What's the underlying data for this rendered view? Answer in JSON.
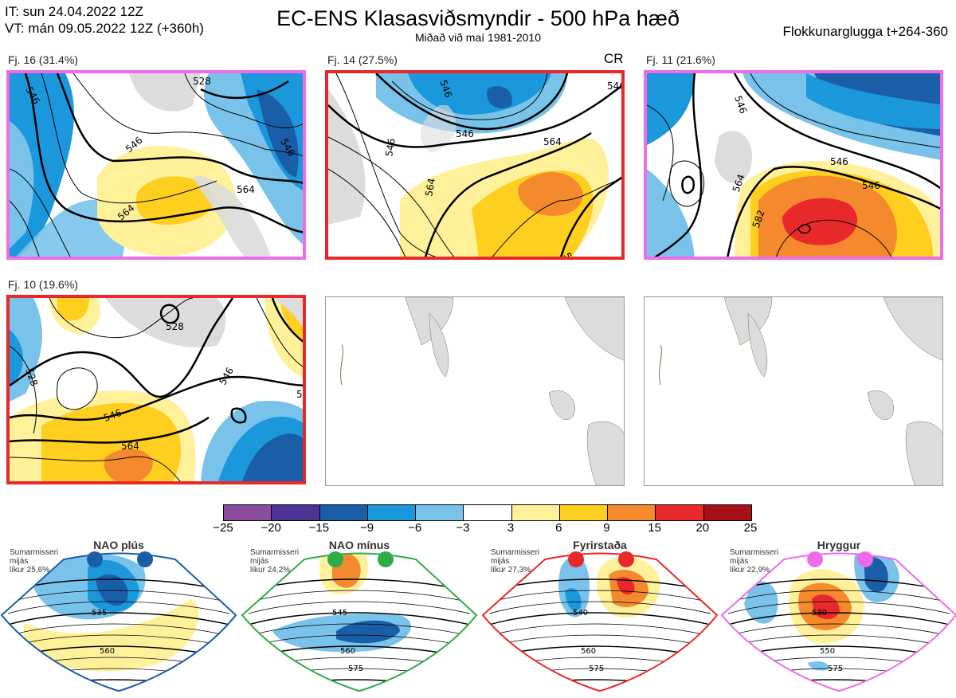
{
  "header": {
    "init_time": "IT: sun 24.04.2022 12Z",
    "valid_time": "VT: mán 09.05.2022 12Z  (+360h)",
    "title": "EC-ENS Klasasviðsmyndir - 500 hPa hæð",
    "subtitle": "Miðað við maí 1981-2010",
    "window": "Flokkunarglugga t+264-360"
  },
  "clusters": [
    {
      "label": "Fj. 16 (31.4%)",
      "border": "#ee6ce8",
      "contours": [
        "528",
        "546",
        "546",
        "564",
        "564",
        "546"
      ]
    },
    {
      "label": "Fj. 14 (27.5%)",
      "border": "#e8292b",
      "tag": "CR",
      "contours": [
        "546",
        "546",
        "564",
        "564",
        "564",
        "546",
        "546"
      ]
    },
    {
      "label": "Fj. 11 (21.6%)",
      "border": "#ee6ce8",
      "contours": [
        "546",
        "546",
        "564",
        "582",
        "546"
      ]
    },
    {
      "label": "Fj. 10 (19.6%)",
      "border": "#e8292b",
      "contours": [
        "528",
        "546",
        "546",
        "564",
        "546",
        "528"
      ]
    }
  ],
  "colorbar": {
    "ticks": [
      "−25",
      "−20",
      "−15",
      "−9",
      "−6",
      "−3",
      "3",
      "6",
      "9",
      "15",
      "20",
      "25"
    ],
    "colors": [
      "#8a4d9e",
      "#4b3494",
      "#1a5ea8",
      "#1b97db",
      "#79c3eb",
      "#ffffff",
      "#fff09a",
      "#ffcf1f",
      "#f5892d",
      "#e8292b",
      "#a71016"
    ]
  },
  "regimes": [
    {
      "name": "NAO plús",
      "season": "Sumarmisseri",
      "month": "mijás",
      "prob": "líkur 25,6%",
      "color": "#1a5ea8",
      "contours": [
        "535",
        "560"
      ]
    },
    {
      "name": "NAO mínus",
      "season": "Sumarmisseri",
      "month": "mijás",
      "prob": "líkur 24,2%",
      "color": "#2eac4a",
      "contours": [
        "545",
        "560",
        "575"
      ]
    },
    {
      "name": "Fyrirstaða",
      "season": "Sumarmisseri",
      "month": "mijás",
      "prob": "líkur 27,3%",
      "color": "#e8292b",
      "contours": [
        "540",
        "560",
        "575"
      ]
    },
    {
      "name": "Hryggur",
      "season": "Sumarmisseri",
      "month": "mijás",
      "prob": "líkur 22,9%",
      "color": "#ee6ce8",
      "contours": [
        "530",
        "550",
        "575"
      ]
    }
  ]
}
